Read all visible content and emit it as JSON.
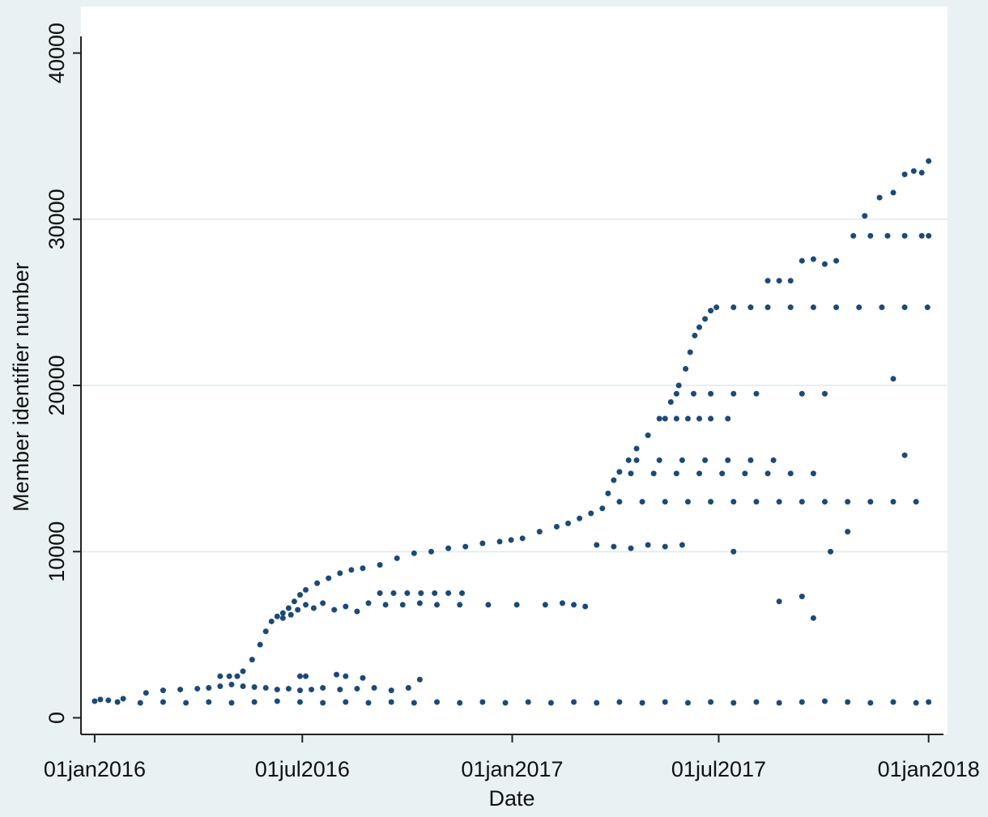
{
  "chart_data": {
    "type": "scatter",
    "x_label": "Date",
    "y_label": "Member identifier number",
    "color": "#1c4a78",
    "grid": true,
    "xlim": [
      -12,
      744
    ],
    "ylim": [
      -1000,
      41000
    ],
    "xticks": [
      {
        "value": 0,
        "label": "01jan2016"
      },
      {
        "value": 182,
        "label": "01jul2016"
      },
      {
        "value": 366,
        "label": "01jan2017"
      },
      {
        "value": 547,
        "label": "01jul2017"
      },
      {
        "value": 731,
        "label": "01jan2018"
      }
    ],
    "yticks": [
      0,
      10000,
      20000,
      30000,
      40000
    ],
    "x": [
      0,
      20,
      40,
      60,
      80,
      100,
      120,
      140,
      160,
      180,
      200,
      220,
      240,
      260,
      280,
      300,
      320,
      340,
      360,
      380,
      400,
      420,
      440,
      460,
      480,
      500,
      520,
      540,
      560,
      580,
      600,
      620,
      640,
      660,
      680,
      700,
      720,
      731,
      5,
      12,
      25,
      45,
      60,
      75,
      90,
      100,
      110,
      120,
      130,
      140,
      150,
      160,
      170,
      180,
      190,
      200,
      215,
      230,
      245,
      260,
      275,
      285,
      110,
      118,
      125,
      180,
      185,
      212,
      220,
      235,
      130,
      138,
      145,
      150,
      155,
      160,
      165,
      170,
      175,
      180,
      185,
      195,
      205,
      215,
      225,
      235,
      250,
      265,
      280,
      295,
      310,
      325,
      340,
      355,
      365,
      165,
      172,
      178,
      185,
      192,
      200,
      210,
      220,
      230,
      240,
      255,
      270,
      285,
      300,
      320,
      345,
      370,
      395,
      410,
      420,
      430,
      250,
      262,
      274,
      286,
      298,
      310,
      322,
      375,
      390,
      405,
      415,
      425,
      435,
      445,
      450,
      455,
      460,
      468,
      475,
      485,
      495,
      505,
      512,
      518,
      522,
      526,
      530,
      535,
      540,
      460,
      480,
      500,
      520,
      540,
      560,
      580,
      600,
      620,
      640,
      660,
      680,
      700,
      720,
      470,
      490,
      510,
      530,
      550,
      570,
      590,
      610,
      630,
      475,
      495,
      515,
      535,
      555,
      575,
      595,
      500,
      510,
      520,
      530,
      540,
      555,
      510,
      525,
      540,
      560,
      580,
      620,
      640,
      545,
      560,
      575,
      590,
      610,
      630,
      650,
      670,
      690,
      710,
      730,
      590,
      600,
      610,
      620,
      630,
      640,
      650,
      665,
      680,
      695,
      710,
      725,
      731,
      675,
      688,
      700,
      710,
      718,
      725,
      731,
      440,
      455,
      470,
      485,
      500,
      515,
      560,
      600,
      620,
      630,
      645,
      660,
      700,
      710
    ],
    "values": [
      1000,
      950,
      900,
      950,
      900,
      950,
      900,
      950,
      1000,
      950,
      900,
      950,
      900,
      950,
      900,
      950,
      900,
      950,
      900,
      950,
      900,
      950,
      900,
      950,
      900,
      950,
      900,
      950,
      900,
      950,
      900,
      950,
      1000,
      950,
      900,
      950,
      900,
      950,
      1100,
      1050,
      1150,
      1500,
      1650,
      1700,
      1750,
      1800,
      1900,
      2000,
      1900,
      1850,
      1800,
      1700,
      1750,
      1650,
      1700,
      1800,
      1700,
      1750,
      1800,
      1650,
      1800,
      2300,
      2500,
      2500,
      2500,
      2500,
      2500,
      2600,
      2500,
      2400,
      2800,
      3500,
      4400,
      5200,
      5800,
      6100,
      6300,
      6600,
      7000,
      7400,
      7700,
      8100,
      8400,
      8700,
      8900,
      9000,
      9200,
      9600,
      9900,
      10000,
      10200,
      10300,
      10500,
      10600,
      10700,
      6000,
      6200,
      6500,
      6800,
      6600,
      6900,
      6500,
      6700,
      6400,
      6900,
      6800,
      6800,
      6900,
      6800,
      6800,
      6800,
      6800,
      6800,
      6900,
      6800,
      6700,
      7500,
      7500,
      7500,
      7500,
      7500,
      7500,
      7500,
      10800,
      11200,
      11500,
      11700,
      12000,
      12300,
      12600,
      13500,
      14300,
      14800,
      15500,
      16200,
      17000,
      18000,
      19000,
      20000,
      21000,
      22000,
      23000,
      23500,
      24000,
      24500,
      13000,
      13000,
      13000,
      13000,
      13000,
      13000,
      13000,
      13000,
      13000,
      13000,
      13000,
      13000,
      13000,
      13000,
      14700,
      14700,
      14700,
      14700,
      14700,
      14700,
      14700,
      14700,
      14700,
      15500,
      15500,
      15500,
      15500,
      15500,
      15500,
      15500,
      18000,
      18000,
      18000,
      18000,
      18000,
      18000,
      19500,
      19500,
      19500,
      19500,
      19500,
      19500,
      19500,
      24700,
      24700,
      24700,
      24700,
      24700,
      24700,
      24700,
      24700,
      24700,
      24700,
      24700,
      26300,
      26300,
      26300,
      27500,
      27600,
      27300,
      27500,
      29000,
      29000,
      29000,
      29000,
      29000,
      29000,
      30200,
      31300,
      31600,
      32700,
      32900,
      32800,
      33500,
      10400,
      10300,
      10200,
      10400,
      10300,
      10400,
      10000,
      7000,
      7300,
      6000,
      10000,
      11200,
      20400,
      15800
    ]
  }
}
